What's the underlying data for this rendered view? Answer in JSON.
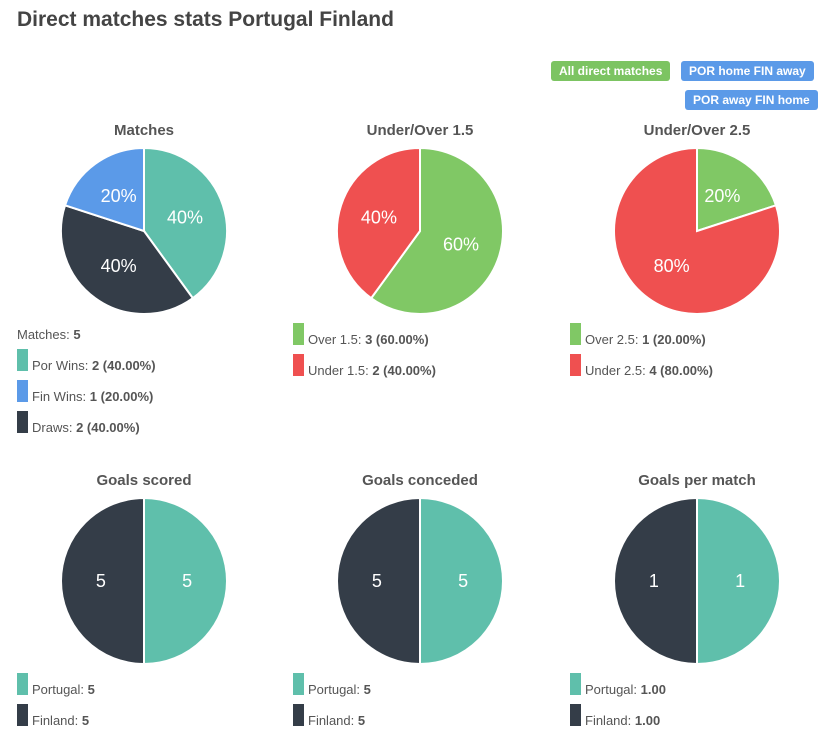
{
  "title": "Direct matches stats Portugal Finland",
  "buttons": [
    {
      "label": "All direct matches",
      "color": "#7cc462"
    },
    {
      "label": "POR home FIN away",
      "color": "#5b9ae8"
    },
    {
      "label": "POR away FIN home",
      "color": "#5b9ae8"
    }
  ],
  "colors": {
    "teal": "#5fbfab",
    "blue": "#5b9ae8",
    "dark": "#343d48",
    "green": "#80c865",
    "red": "#ef5050"
  },
  "chart_data": [
    {
      "type": "pie",
      "title": "Matches",
      "summary_label": "Matches:",
      "summary_value": "5",
      "slices": [
        {
          "name": "Por Wins",
          "value": 2,
          "pct": 40,
          "label": "40%",
          "legend_value": "2 (40.00%)",
          "color": "teal"
        },
        {
          "name": "Draws",
          "value": 2,
          "pct": 40,
          "label": "40%",
          "legend_value": "2 (40.00%)",
          "color": "dark"
        },
        {
          "name": "Fin Wins",
          "value": 1,
          "pct": 20,
          "label": "20%",
          "legend_value": "1 (20.00%)",
          "color": "blue"
        }
      ],
      "legend_order": [
        0,
        2,
        1
      ]
    },
    {
      "type": "pie",
      "title": "Under/Over 1.5",
      "slices": [
        {
          "name": "Over 1.5",
          "value": 3,
          "pct": 60,
          "label": "60%",
          "legend_value": "3 (60.00%)",
          "color": "green"
        },
        {
          "name": "Under 1.5",
          "value": 2,
          "pct": 40,
          "label": "40%",
          "legend_value": "2 (40.00%)",
          "color": "red"
        }
      ],
      "legend_order": [
        0,
        1
      ]
    },
    {
      "type": "pie",
      "title": "Under/Over 2.5",
      "slices": [
        {
          "name": "Over 2.5",
          "value": 1,
          "pct": 20,
          "label": "20%",
          "legend_value": "1 (20.00%)",
          "color": "green"
        },
        {
          "name": "Under 2.5",
          "value": 4,
          "pct": 80,
          "label": "80%",
          "legend_value": "4 (80.00%)",
          "color": "red"
        }
      ],
      "legend_order": [
        0,
        1
      ]
    },
    {
      "type": "pie",
      "title": "Goals scored",
      "slices": [
        {
          "name": "Portugal",
          "value": 5,
          "pct": 50,
          "label": "5",
          "legend_value": "5",
          "color": "teal"
        },
        {
          "name": "Finland",
          "value": 5,
          "pct": 50,
          "label": "5",
          "legend_value": "5",
          "color": "dark"
        }
      ],
      "legend_order": [
        0,
        1
      ]
    },
    {
      "type": "pie",
      "title": "Goals conceded",
      "slices": [
        {
          "name": "Portugal",
          "value": 5,
          "pct": 50,
          "label": "5",
          "legend_value": "5",
          "color": "teal"
        },
        {
          "name": "Finland",
          "value": 5,
          "pct": 50,
          "label": "5",
          "legend_value": "5",
          "color": "dark"
        }
      ],
      "legend_order": [
        0,
        1
      ]
    },
    {
      "type": "pie",
      "title": "Goals per match",
      "slices": [
        {
          "name": "Portugal",
          "value": 1,
          "pct": 50,
          "label": "1",
          "legend_value": "1.00",
          "color": "teal"
        },
        {
          "name": "Finland",
          "value": 1,
          "pct": 50,
          "label": "1",
          "legend_value": "1.00",
          "color": "dark"
        }
      ],
      "legend_order": [
        0,
        1
      ]
    }
  ]
}
